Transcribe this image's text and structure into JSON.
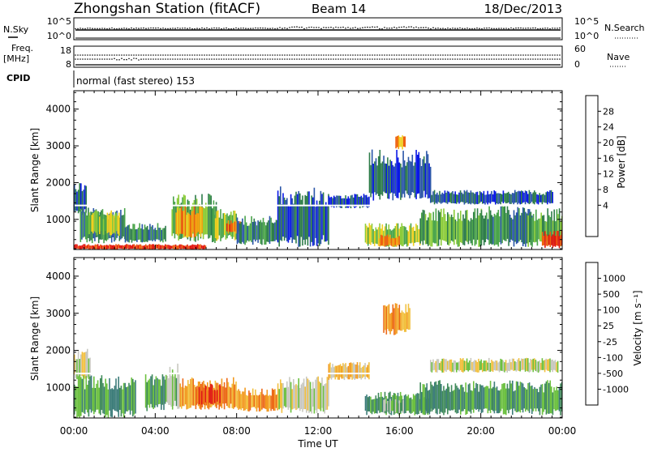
{
  "header": {
    "title": "Zhongshan Station (fitACF)",
    "beam": "Beam 14",
    "date": "18/Dec/2013"
  },
  "noise_panel": {
    "left_label": "N.Sky",
    "right_label": "N.Search",
    "left_ticks": [
      "10^5",
      "10^0"
    ],
    "right_ticks": [
      "10^5",
      "10^0"
    ]
  },
  "freq_panel": {
    "left_label_line1": "Freq.",
    "left_label_line2": "[MHz]",
    "right_label": "Nave",
    "left_ticks": [
      "18",
      "8"
    ],
    "right_ticks": [
      "60",
      "0"
    ]
  },
  "cpid_panel": {
    "label": "CPID",
    "mode_text": "normal (fast stereo) 153"
  },
  "chart_data": [
    {
      "type": "heatmap",
      "parameter": "Power",
      "ylabel": "Slant Range [km]",
      "ylim": [
        180,
        4500
      ],
      "yticks": [
        "1000",
        "2000",
        "3000",
        "4000"
      ],
      "xlim_hours": [
        0,
        24
      ],
      "colorbar": {
        "label": "Power [dB]",
        "ticks": [
          "4",
          "8",
          "12",
          "16",
          "20",
          "24",
          "28"
        ],
        "colors": [
          "#0a18e6",
          "#2a55a8",
          "#2e7d4a",
          "#4aa44a",
          "#8ccc3a",
          "#f0d020",
          "#f4a010",
          "#ee6010",
          "#e21810"
        ]
      },
      "echo_regions": [
        {
          "t0": 0.0,
          "t1": 0.6,
          "r0": 1100,
          "r1": 2050,
          "level": 1
        },
        {
          "t0": 0.3,
          "t1": 2.5,
          "r0": 350,
          "r1": 1350,
          "level": 2
        },
        {
          "t0": 0.6,
          "t1": 2.2,
          "r0": 550,
          "r1": 1250,
          "level": 4
        },
        {
          "t0": 0.0,
          "t1": 6.5,
          "r0": 180,
          "r1": 330,
          "level": 8
        },
        {
          "t0": 2.5,
          "t1": 4.5,
          "r0": 350,
          "r1": 900,
          "level": 2
        },
        {
          "t0": 4.8,
          "t1": 7.0,
          "r0": 350,
          "r1": 1700,
          "level": 3
        },
        {
          "t0": 5.0,
          "t1": 6.3,
          "r0": 500,
          "r1": 1400,
          "level": 6
        },
        {
          "t0": 6.8,
          "t1": 8.0,
          "r0": 400,
          "r1": 1300,
          "level": 4
        },
        {
          "t0": 7.5,
          "t1": 8.2,
          "r0": 600,
          "r1": 1000,
          "level": 7
        },
        {
          "t0": 8.0,
          "t1": 10.0,
          "r0": 300,
          "r1": 1100,
          "level": 2
        },
        {
          "t0": 10.0,
          "t1": 12.5,
          "r0": 250,
          "r1": 1900,
          "level": 1
        },
        {
          "t0": 12.5,
          "t1": 14.5,
          "r0": 1300,
          "r1": 1700,
          "level": 1
        },
        {
          "t0": 14.3,
          "t1": 17.0,
          "r0": 250,
          "r1": 900,
          "level": 4
        },
        {
          "t0": 15.0,
          "t1": 16.0,
          "r0": 250,
          "r1": 600,
          "level": 7
        },
        {
          "t0": 14.5,
          "t1": 17.5,
          "r0": 1500,
          "r1": 2900,
          "level": 1
        },
        {
          "t0": 15.8,
          "t1": 16.3,
          "r0": 2900,
          "r1": 3300,
          "level": 6
        },
        {
          "t0": 17.0,
          "t1": 20.0,
          "r0": 250,
          "r1": 1300,
          "level": 3
        },
        {
          "t0": 20.0,
          "t1": 22.5,
          "r0": 250,
          "r1": 1400,
          "level": 2
        },
        {
          "t0": 17.5,
          "t1": 23.5,
          "r0": 1400,
          "r1": 1800,
          "level": 1
        },
        {
          "t0": 22.3,
          "t1": 24.0,
          "r0": 250,
          "r1": 1300,
          "level": 3
        },
        {
          "t0": 23.0,
          "t1": 24.0,
          "r0": 200,
          "r1": 700,
          "level": 8
        }
      ]
    },
    {
      "type": "heatmap",
      "parameter": "Velocity",
      "ylabel": "Slant Range [km]",
      "ylim": [
        180,
        4500
      ],
      "yticks": [
        "1000",
        "2000",
        "3000",
        "4000"
      ],
      "xlim_hours": [
        0,
        24
      ],
      "colorbar": {
        "label": "Velocity [m s⁻¹]",
        "ticks": [
          "1000",
          "500",
          "100",
          "25",
          "-25",
          "-100",
          "-500",
          "-1000"
        ],
        "colors": [
          "#2346a8",
          "#3d7d7a",
          "#3f8a5a",
          "#6cc040",
          "#c8c8c0",
          "#f2c040",
          "#f29a20",
          "#ec6a18",
          "#e01818"
        ]
      },
      "echo_regions": [
        {
          "t0": 0.0,
          "t1": 0.8,
          "r0": 1200,
          "r1": 2050,
          "level": 4
        },
        {
          "t0": 0.0,
          "t1": 3.0,
          "r0": 180,
          "r1": 1350,
          "level": 2
        },
        {
          "t0": 3.5,
          "t1": 4.5,
          "r0": 350,
          "r1": 1400,
          "level": 2
        },
        {
          "t0": 4.5,
          "t1": 5.2,
          "r0": 400,
          "r1": 1700,
          "level": 3
        },
        {
          "t0": 5.2,
          "t1": 8.0,
          "r0": 400,
          "r1": 1300,
          "level": 6
        },
        {
          "t0": 6.0,
          "t1": 7.2,
          "r0": 500,
          "r1": 1100,
          "level": 7
        },
        {
          "t0": 8.0,
          "t1": 10.0,
          "r0": 350,
          "r1": 1000,
          "level": 6
        },
        {
          "t0": 10.0,
          "t1": 12.5,
          "r0": 300,
          "r1": 1300,
          "level": 4
        },
        {
          "t0": 14.3,
          "t1": 17.5,
          "r0": 250,
          "r1": 900,
          "level": 2
        },
        {
          "t0": 15.2,
          "t1": 16.2,
          "r0": 300,
          "r1": 700,
          "level": 3
        },
        {
          "t0": 15.2,
          "t1": 16.5,
          "r0": 2400,
          "r1": 3300,
          "level": 6
        },
        {
          "t0": 17.0,
          "t1": 24.0,
          "r0": 250,
          "r1": 1200,
          "level": 2
        },
        {
          "t0": 17.5,
          "t1": 23.8,
          "r0": 1400,
          "r1": 1800,
          "level": 4
        },
        {
          "t0": 12.5,
          "t1": 14.5,
          "r0": 1200,
          "r1": 1700,
          "level": 5
        }
      ]
    }
  ],
  "x_axis": {
    "label": "Time UT",
    "ticks": [
      "00:00",
      "04:00",
      "08:00",
      "12:00",
      "16:00",
      "20:00",
      "00:00"
    ]
  },
  "colors": {
    "axis": "#000000",
    "background": "#ffffff"
  }
}
